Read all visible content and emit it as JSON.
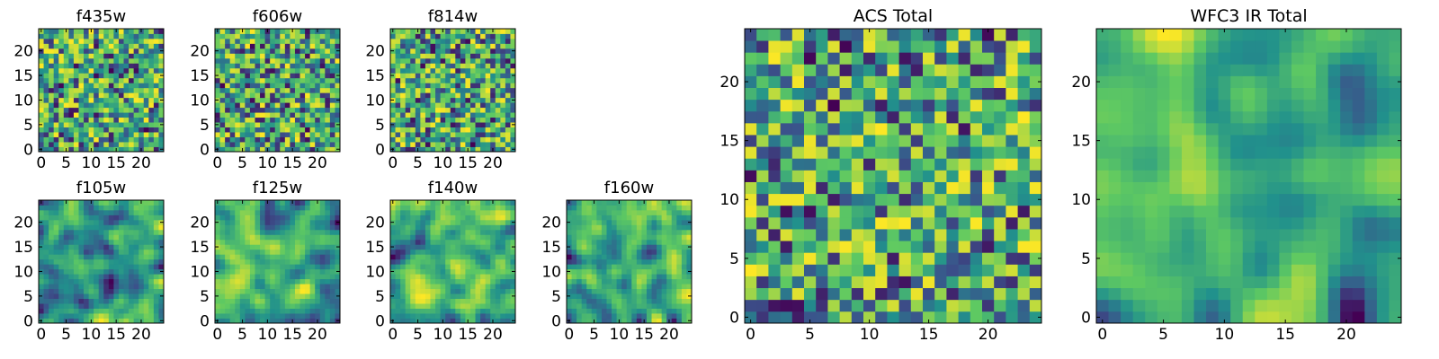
{
  "chart_data": [
    {
      "type": "heatmap",
      "title": "f435w",
      "x_ticks": [
        0,
        5,
        10,
        15,
        20
      ],
      "y_ticks": [
        0,
        5,
        10,
        15,
        20
      ],
      "xlim": [
        0,
        25
      ],
      "ylim": [
        0,
        25
      ],
      "grid": false,
      "colormap": "viridis",
      "seed": 11,
      "smoothness": 0
    },
    {
      "type": "heatmap",
      "title": "f606w",
      "x_ticks": [
        0,
        5,
        10,
        15,
        20
      ],
      "y_ticks": [
        0,
        5,
        10,
        15,
        20
      ],
      "xlim": [
        0,
        25
      ],
      "ylim": [
        0,
        25
      ],
      "grid": false,
      "colormap": "viridis",
      "seed": 23,
      "smoothness": 0
    },
    {
      "type": "heatmap",
      "title": "f814w",
      "x_ticks": [
        0,
        5,
        10,
        15,
        20
      ],
      "y_ticks": [
        0,
        5,
        10,
        15,
        20
      ],
      "xlim": [
        0,
        25
      ],
      "ylim": [
        0,
        25
      ],
      "grid": false,
      "colormap": "viridis",
      "seed": 37,
      "smoothness": 0
    },
    {
      "type": "heatmap",
      "title": "f105w",
      "x_ticks": [
        0,
        5,
        10,
        15,
        20
      ],
      "y_ticks": [
        0,
        5,
        10,
        15,
        20
      ],
      "xlim": [
        0,
        25
      ],
      "ylim": [
        0,
        25
      ],
      "grid": false,
      "colormap": "viridis",
      "seed": 41,
      "smoothness": 2
    },
    {
      "type": "heatmap",
      "title": "f125w",
      "x_ticks": [
        0,
        5,
        10,
        15,
        20
      ],
      "y_ticks": [
        0,
        5,
        10,
        15,
        20
      ],
      "xlim": [
        0,
        25
      ],
      "ylim": [
        0,
        25
      ],
      "grid": false,
      "colormap": "viridis",
      "seed": 53,
      "smoothness": 2
    },
    {
      "type": "heatmap",
      "title": "f140w",
      "x_ticks": [
        0,
        5,
        10,
        15,
        20
      ],
      "y_ticks": [
        0,
        5,
        10,
        15,
        20
      ],
      "xlim": [
        0,
        25
      ],
      "ylim": [
        0,
        25
      ],
      "grid": false,
      "colormap": "viridis",
      "seed": 67,
      "smoothness": 2
    },
    {
      "type": "heatmap",
      "title": "f160w",
      "x_ticks": [
        0,
        5,
        10,
        15,
        20
      ],
      "y_ticks": [
        0,
        5,
        10,
        15,
        20
      ],
      "xlim": [
        0,
        25
      ],
      "ylim": [
        0,
        25
      ],
      "grid": false,
      "colormap": "viridis",
      "seed": 79,
      "smoothness": 2
    },
    {
      "type": "heatmap",
      "title": "ACS Total",
      "x_ticks": [
        0,
        5,
        10,
        15,
        20
      ],
      "y_ticks": [
        0,
        5,
        10,
        15,
        20
      ],
      "xlim": [
        0,
        25
      ],
      "ylim": [
        0,
        25
      ],
      "grid": false,
      "colormap": "viridis",
      "seed": 97,
      "smoothness": 0
    },
    {
      "type": "heatmap",
      "title": "WFC3 IR Total",
      "x_ticks": [
        0,
        5,
        10,
        15,
        20
      ],
      "y_ticks": [
        0,
        5,
        10,
        15,
        20
      ],
      "xlim": [
        0,
        25
      ],
      "ylim": [
        0,
        25
      ],
      "grid": false,
      "colormap": "viridis",
      "seed": 131,
      "smoothness": 3
    }
  ],
  "colors": {
    "viridis_stops": [
      "#440154",
      "#3b528b",
      "#21918c",
      "#5ec962",
      "#fde725"
    ],
    "axes_edge": "#000000",
    "background": "#ffffff"
  }
}
